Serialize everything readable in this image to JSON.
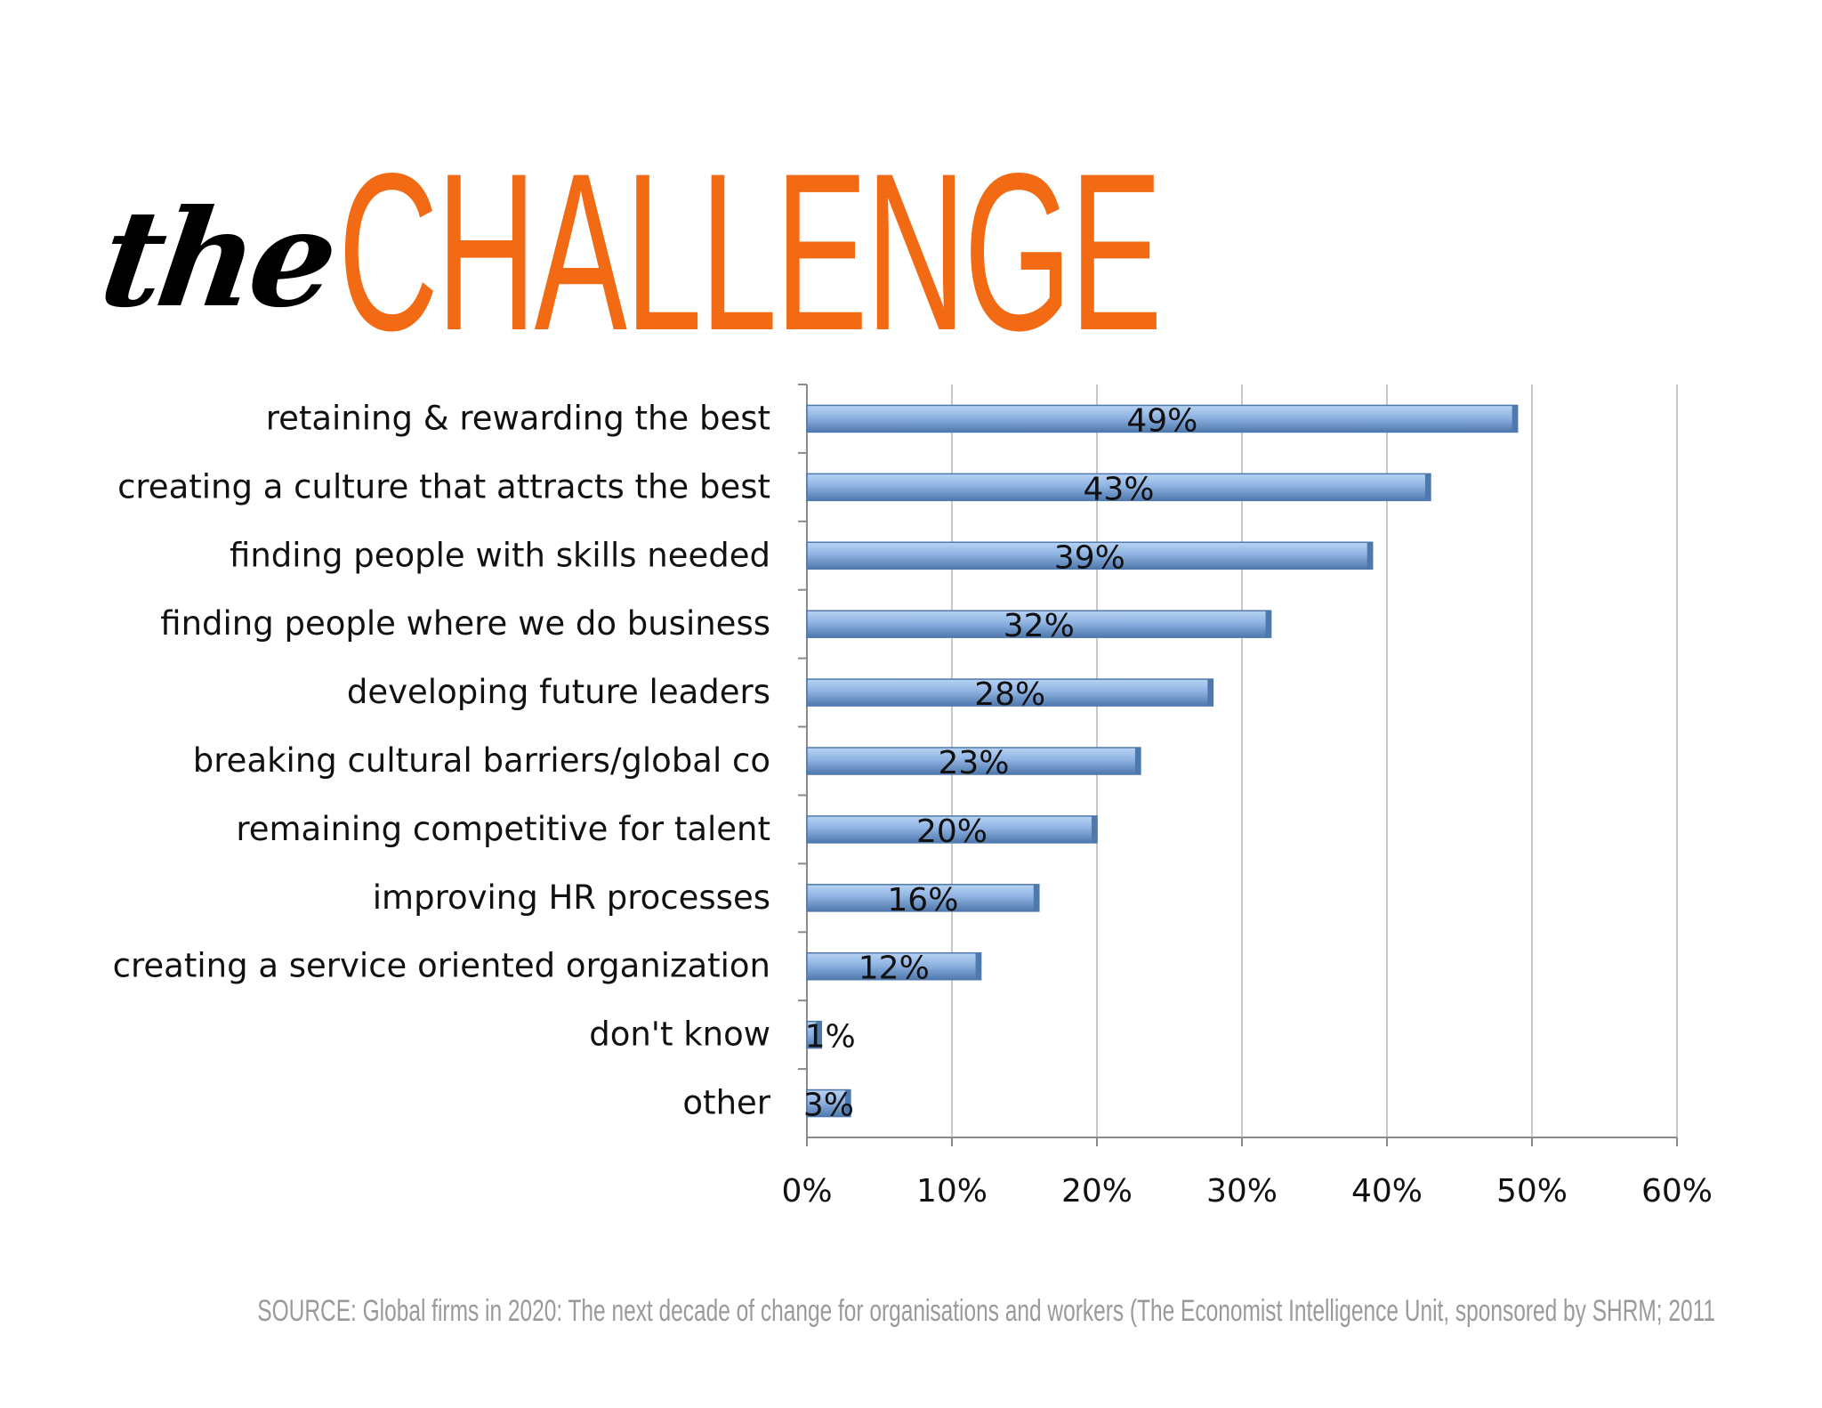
{
  "title": {
    "word_the": "the",
    "word_main": "CHALLENGE"
  },
  "colors": {
    "title_accent": "#f26a13",
    "bar_fill_light": "#b7d3f3",
    "bar_fill_mid": "#8fb3e2",
    "bar_fill_dark": "#4f78ad",
    "gridline": "#c8c8c8",
    "axis": "#8a8a8a",
    "source_text": "#9a9a9a"
  },
  "source": "SOURCE: Global firms in 2020: The next decade of change for organisations and workers (The Economist Intelligence Unit, sponsored by SHRM; 2011",
  "chart_data": {
    "type": "bar",
    "orientation": "horizontal",
    "title": "",
    "xlabel": "",
    "ylabel": "",
    "xlim": [
      0,
      60
    ],
    "xticks": [
      0,
      10,
      20,
      30,
      40,
      50,
      60
    ],
    "xtick_labels": [
      "0%",
      "10%",
      "20%",
      "30%",
      "40%",
      "50%",
      "60%"
    ],
    "grid": true,
    "legend": "none",
    "categories": [
      "retaining & rewarding the best",
      "creating a culture that attracts the best",
      "finding people with skills needed",
      "finding people where we do business",
      "developing future leaders",
      "breaking cultural barriers/global co",
      "remaining competitive for talent",
      "improving HR processes",
      "creating a service oriented organization",
      "don't know",
      "other"
    ],
    "values": [
      49,
      43,
      39,
      32,
      28,
      23,
      20,
      16,
      12,
      1,
      3
    ],
    "data_labels": [
      "49%",
      "43%",
      "39%",
      "32%",
      "28%",
      "23%",
      "20%",
      "16%",
      "12%",
      "1%",
      "3%"
    ]
  }
}
